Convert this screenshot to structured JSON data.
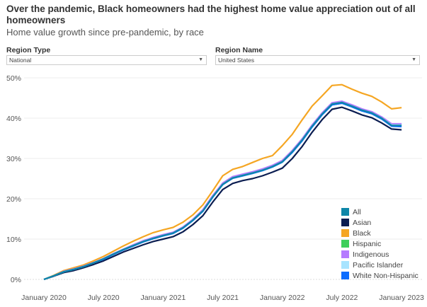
{
  "header": {
    "title": "Over the pandemic, Black homeowners had the highest home value appreciation out of all homeowners",
    "subtitle": "Home value growth since pre-pandemic, by race"
  },
  "filters": {
    "region_type": {
      "label": "Region Type",
      "value": "National"
    },
    "region_name": {
      "label": "Region Name",
      "value": "United States"
    }
  },
  "chart_data": {
    "type": "line",
    "title": "Home value growth since pre-pandemic, by race",
    "x_start": "January 2020",
    "x_interval": "monthly",
    "x_ticks": [
      "January 2020",
      "July 2020",
      "January 2021",
      "July 2021",
      "January 2022",
      "July 2022",
      "January 2023"
    ],
    "y_ticks": [
      "0%",
      "10%",
      "20%",
      "30%",
      "40%",
      "50%"
    ],
    "ylim": [
      0,
      50
    ],
    "grid": true,
    "legend_position": "bottom-right",
    "series": [
      {
        "name": "Asian",
        "color": "#0b1d51",
        "values": [
          0,
          0.8,
          1.7,
          2.2,
          2.9,
          3.7,
          4.6,
          5.7,
          6.8,
          7.7,
          8.6,
          9.4,
          10,
          10.6,
          11.8,
          13.6,
          15.8,
          19.2,
          22.3,
          23.8,
          24.5,
          25,
          25.7,
          26.6,
          27.6,
          30,
          33,
          36.5,
          39.6,
          42.2,
          42.7,
          41.8,
          40.8,
          40.1,
          38.8,
          37.3,
          37.1
        ]
      },
      {
        "name": "Black",
        "color": "#f5a623",
        "values": [
          0,
          1,
          2.2,
          2.9,
          3.6,
          4.6,
          5.7,
          7,
          8.3,
          9.5,
          10.6,
          11.6,
          12.3,
          12.9,
          14.2,
          16,
          18.5,
          22,
          25.7,
          27.3,
          28,
          29,
          30,
          30.7,
          33.2,
          36,
          39.6,
          43,
          45.5,
          48.1,
          48.3,
          47.2,
          46.2,
          45.4,
          44,
          42.3,
          42.6
        ]
      },
      {
        "name": "Hispanic",
        "color": "#3ecf5b",
        "values": [
          0,
          0.9,
          1.9,
          2.5,
          3.2,
          4.1,
          5.1,
          6.3,
          7.4,
          8.4,
          9.4,
          10.2,
          10.9,
          11.5,
          12.8,
          14.7,
          17,
          20.5,
          23.5,
          25.1,
          25.7,
          26.3,
          27,
          27.9,
          29.1,
          31.6,
          34.5,
          37.9,
          40.9,
          43.3,
          43.7,
          42.8,
          41.8,
          41.1,
          39.8,
          38.3,
          38.3
        ]
      },
      {
        "name": "Indigenous",
        "color": "#b57bff",
        "values": [
          0,
          0.9,
          2,
          2.6,
          3.3,
          4.2,
          5.2,
          6.4,
          7.5,
          8.6,
          9.6,
          10.4,
          11.1,
          11.7,
          13,
          14.9,
          17.3,
          20.8,
          23.9,
          25.5,
          26.1,
          26.7,
          27.4,
          28.3,
          29.5,
          32,
          34.9,
          38.3,
          41.3,
          43.8,
          44.2,
          43.3,
          42.3,
          41.6,
          40.3,
          38.6,
          38.6
        ]
      },
      {
        "name": "Pacific Islander",
        "color": "#a8e4ff",
        "values": [
          0,
          0.9,
          1.9,
          2.5,
          3.2,
          4.1,
          5.1,
          6.3,
          7.4,
          8.4,
          9.4,
          10.2,
          10.9,
          11.5,
          12.8,
          14.7,
          17,
          20.5,
          23.6,
          25.2,
          25.8,
          26.4,
          27.1,
          28,
          29.2,
          31.7,
          34.6,
          38,
          41,
          43.5,
          43.9,
          43,
          42,
          41.3,
          40,
          38.3,
          38.3
        ]
      },
      {
        "name": "White Non-Hispanic",
        "color": "#0b6cff",
        "values": [
          0,
          0.9,
          1.9,
          2.5,
          3.2,
          4.1,
          5,
          6.2,
          7.3,
          8.3,
          9.3,
          10.1,
          10.8,
          11.4,
          12.7,
          14.6,
          16.9,
          20.4,
          23.5,
          25.1,
          25.7,
          26.3,
          27,
          27.9,
          29.1,
          31.5,
          34.4,
          37.8,
          40.8,
          43.3,
          43.7,
          42.8,
          41.8,
          41.1,
          39.8,
          38,
          37.9
        ]
      },
      {
        "name": "All",
        "color": "#0e86a8",
        "values": [
          0,
          0.9,
          1.9,
          2.5,
          3.2,
          4.1,
          5.1,
          6.3,
          7.4,
          8.4,
          9.4,
          10.2,
          10.9,
          11.5,
          12.8,
          14.7,
          17,
          20.5,
          23.6,
          25.2,
          25.8,
          26.4,
          27.1,
          28,
          29.2,
          31.7,
          34.6,
          38,
          41,
          43.5,
          43.9,
          43,
          42,
          41.3,
          40,
          38.2,
          38.2
        ]
      }
    ],
    "legend": [
      "All",
      "Asian",
      "Black",
      "Hispanic",
      "Indigenous",
      "Pacific Islander",
      "White Non-Hispanic"
    ]
  }
}
